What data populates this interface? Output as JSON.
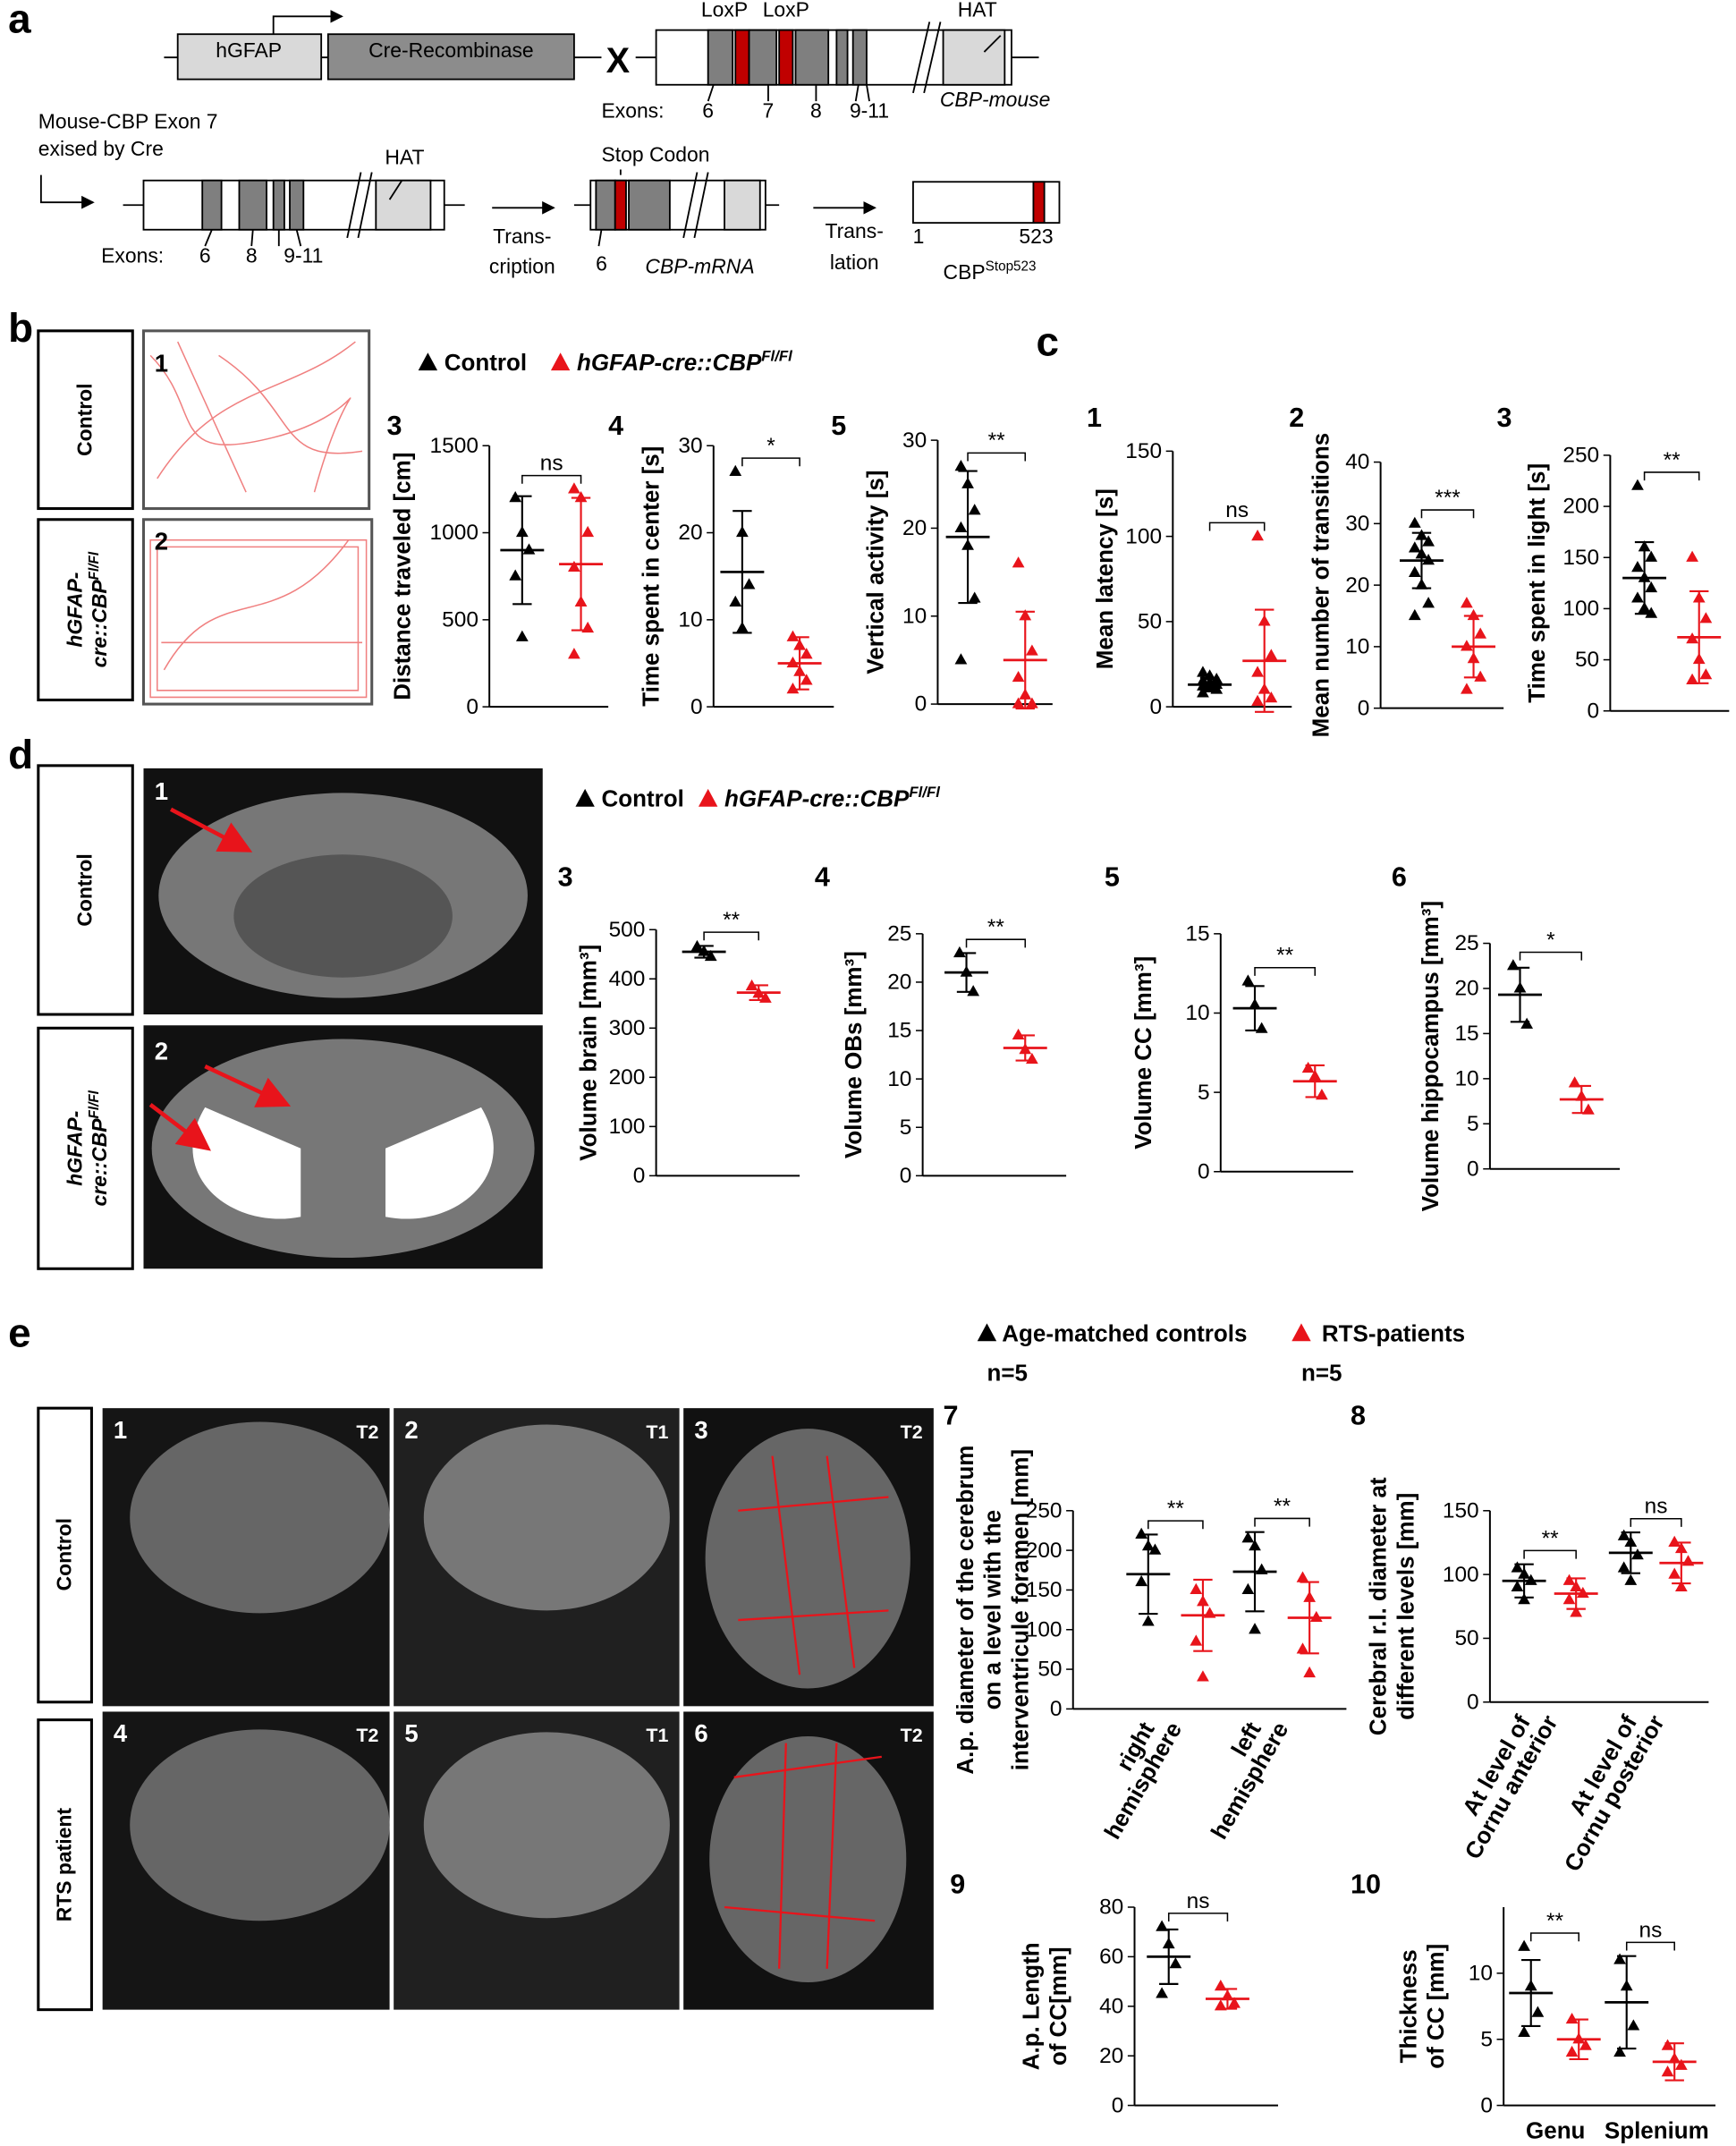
{
  "panel_labels": [
    "a",
    "b",
    "c",
    "d",
    "e"
  ],
  "diagram": {
    "construct1": [
      "hGFAP",
      "Cre-Recombinase"
    ],
    "cross": "X",
    "loxp": [
      "LoxP",
      "LoxP"
    ],
    "hat": "HAT",
    "exons_label": "Exons:",
    "exons1": [
      "6",
      "7",
      "8",
      "9-11"
    ],
    "gene": "CBP-mouse",
    "excised": [
      "Mouse-CBP Exon 7",
      "exised by Cre"
    ],
    "hat2": "HAT",
    "exons_label2": "Exons:",
    "exons2": [
      "6",
      "8",
      "9-11"
    ],
    "transcription": [
      "Trans-",
      "cription"
    ],
    "stop": "Stop Codon",
    "exon_mrna": "6",
    "mrna": "CBP-mRNA",
    "translation": [
      "Trans-",
      "lation"
    ],
    "protein_start": "1",
    "protein_end": "523",
    "protein": "CBP",
    "protein_sup": "Stop523"
  },
  "b": {
    "rows": {
      "control": "Control",
      "mutant": [
        "hGFAP-",
        "cre::CBP"
      ],
      "mutant_sup": "Fl/Fl"
    },
    "images": [
      "1",
      "2"
    ],
    "legend": [
      {
        "name": "Control",
        "color": "#000000"
      },
      {
        "name": "hGFAP-cre::CBP",
        "sup": "Fl/Fl",
        "color": "#e8141b"
      }
    ]
  },
  "d": {
    "rows": {
      "control": "Control",
      "mutant": [
        "hGFAP-",
        "cre::CBP"
      ],
      "mutant_sup": "Fl/Fl"
    },
    "images": [
      "1",
      "2"
    ],
    "legend": [
      {
        "name": "Control",
        "color": "#000000"
      },
      {
        "name": "hGFAP-cre::CBP",
        "sup": "Fl/Fl",
        "color": "#e8141b"
      }
    ]
  },
  "e": {
    "rows": [
      "Control",
      "RTS patient"
    ],
    "images": [
      {
        "n": "1",
        "seq": "T2"
      },
      {
        "n": "2",
        "seq": "T1"
      },
      {
        "n": "3",
        "seq": "T2"
      },
      {
        "n": "4",
        "seq": "T2"
      },
      {
        "n": "5",
        "seq": "T1"
      },
      {
        "n": "6",
        "seq": "T2"
      }
    ],
    "legend": [
      {
        "name": "Age-matched controls",
        "n": "n=5",
        "color": "#000000"
      },
      {
        "name": "RTS-patients",
        "n": "n=5",
        "color": "#e8141b"
      }
    ]
  },
  "chart_data": [
    {
      "type": "dotplot",
      "label": "3",
      "ylabel": [
        "Distance traveled [cm]"
      ],
      "ylim": [
        0,
        1500
      ],
      "yticks": [
        0,
        500,
        1000,
        1500
      ],
      "groups": [
        {
          "color": "#000000",
          "points": [
            1200,
            1000,
            900,
            750,
            400
          ],
          "mean": 900,
          "sd": 310
        },
        {
          "color": "#e8141b",
          "points": [
            1250,
            1200,
            1000,
            800,
            600,
            450,
            300
          ],
          "mean": 820,
          "sd": 380
        }
      ],
      "sig": [
        {
          "text": "ns",
          "groups": [
            0,
            1
          ]
        }
      ]
    },
    {
      "type": "dotplot",
      "label": "4",
      "ylabel": [
        "Time spent in center [s]"
      ],
      "ylim": [
        0,
        30
      ],
      "yticks": [
        0,
        10,
        20,
        30
      ],
      "groups": [
        {
          "color": "#000000",
          "points": [
            27,
            20,
            14,
            12,
            9
          ],
          "mean": 15.5,
          "sd": 7
        },
        {
          "color": "#e8141b",
          "points": [
            8,
            7,
            6,
            5,
            4,
            3,
            2
          ],
          "mean": 5,
          "sd": 3
        }
      ],
      "sig": [
        {
          "text": "*",
          "groups": [
            0,
            1
          ]
        }
      ]
    },
    {
      "type": "dotplot",
      "label": "5",
      "ylabel": [
        "Vertical activity [s]"
      ],
      "ylim": [
        0,
        30
      ],
      "yticks": [
        0,
        10,
        20,
        30
      ],
      "groups": [
        {
          "color": "#000000",
          "points": [
            27,
            25,
            22,
            20,
            18,
            12,
            5
          ],
          "mean": 19,
          "sd": 7.5
        },
        {
          "color": "#e8141b",
          "points": [
            16,
            10,
            6,
            3,
            1,
            0,
            0
          ],
          "mean": 5,
          "sd": 5.5
        }
      ],
      "sig": [
        {
          "text": "**",
          "groups": [
            0,
            1
          ]
        }
      ]
    },
    {
      "type": "dotplot",
      "label": "1",
      "ylabel": [
        "Mean latency [s]"
      ],
      "ylim": [
        0,
        150
      ],
      "yticks": [
        0,
        50,
        100,
        150
      ],
      "groups": [
        {
          "color": "#000000",
          "points": [
            20,
            18,
            16,
            15,
            14,
            13,
            12,
            11,
            10,
            8
          ],
          "mean": 13,
          "sd": 4
        },
        {
          "color": "#e8141b",
          "points": [
            100,
            50,
            30,
            20,
            10,
            5,
            3
          ],
          "mean": 27,
          "sd": 30
        }
      ],
      "sig": [
        {
          "text": "ns",
          "groups": [
            0,
            1
          ]
        }
      ]
    },
    {
      "type": "dotplot",
      "label": "2",
      "ylabel": [
        "Mean number of transitions"
      ],
      "ylim": [
        0,
        40
      ],
      "yticks": [
        0,
        10,
        20,
        30,
        40
      ],
      "groups": [
        {
          "color": "#000000",
          "points": [
            30,
            28,
            27,
            26,
            25,
            24,
            22,
            20,
            17,
            15
          ],
          "mean": 24,
          "sd": 4.5
        },
        {
          "color": "#e8141b",
          "points": [
            17,
            15,
            12,
            10,
            8,
            5,
            3
          ],
          "mean": 10,
          "sd": 5
        }
      ],
      "sig": [
        {
          "text": "***",
          "groups": [
            0,
            1
          ]
        }
      ]
    },
    {
      "type": "dotplot",
      "label": "3",
      "ylabel": [
        "Time spent in light [s]"
      ],
      "ylim": [
        0,
        250
      ],
      "yticks": [
        0,
        50,
        100,
        150,
        200,
        250
      ],
      "groups": [
        {
          "color": "#000000",
          "points": [
            220,
            160,
            150,
            140,
            130,
            120,
            110,
            100,
            95
          ],
          "mean": 130,
          "sd": 35
        },
        {
          "color": "#e8141b",
          "points": [
            150,
            110,
            90,
            70,
            50,
            35,
            30
          ],
          "mean": 72,
          "sd": 45
        }
      ],
      "sig": [
        {
          "text": "**",
          "groups": [
            0,
            1
          ]
        }
      ]
    },
    {
      "type": "dotplot",
      "label": "3",
      "ylabel": [
        "Volume brain [mm³]"
      ],
      "ylim": [
        0,
        500
      ],
      "yticks": [
        0,
        100,
        200,
        300,
        400,
        500
      ],
      "groups": [
        {
          "color": "#000000",
          "points": [
            465,
            455,
            445
          ],
          "mean": 455,
          "sd": 12
        },
        {
          "color": "#e8141b",
          "points": [
            385,
            370,
            360
          ],
          "mean": 372,
          "sd": 15
        }
      ],
      "sig": [
        {
          "text": "**",
          "groups": [
            0,
            1
          ]
        }
      ]
    },
    {
      "type": "dotplot",
      "label": "4",
      "ylabel": [
        "Volume OBs [mm³]"
      ],
      "ylim": [
        0,
        25
      ],
      "yticks": [
        0,
        5,
        10,
        15,
        20,
        25
      ],
      "groups": [
        {
          "color": "#000000",
          "points": [
            23,
            21,
            19
          ],
          "mean": 21,
          "sd": 2
        },
        {
          "color": "#e8141b",
          "points": [
            14.5,
            13,
            12
          ],
          "mean": 13.2,
          "sd": 1.3
        }
      ],
      "sig": [
        {
          "text": "**",
          "groups": [
            0,
            1
          ]
        }
      ]
    },
    {
      "type": "dotplot",
      "label": "5",
      "ylabel": [
        "Volume CC [mm³]"
      ],
      "ylim": [
        0,
        15
      ],
      "yticks": [
        0,
        5,
        10,
        15
      ],
      "groups": [
        {
          "color": "#000000",
          "points": [
            12,
            10.5,
            9
          ],
          "mean": 10.3,
          "sd": 1.4
        },
        {
          "color": "#e8141b",
          "points": [
            6.5,
            6,
            4.8
          ],
          "mean": 5.7,
          "sd": 1
        }
      ],
      "sig": [
        {
          "text": "**",
          "groups": [
            0,
            1
          ]
        }
      ]
    },
    {
      "type": "dotplot",
      "label": "6",
      "ylabel": [
        "Volume hippocampus [mm³]"
      ],
      "ylim": [
        0,
        25
      ],
      "yticks": [
        0,
        5,
        10,
        15,
        20,
        25
      ],
      "groups": [
        {
          "color": "#000000",
          "points": [
            22.5,
            20,
            16
          ],
          "mean": 19.3,
          "sd": 3
        },
        {
          "color": "#e8141b",
          "points": [
            9.5,
            8,
            6.5
          ],
          "mean": 7.7,
          "sd": 1.5
        }
      ],
      "sig": [
        {
          "text": "*",
          "groups": [
            0,
            1
          ]
        }
      ]
    },
    {
      "type": "dotplot",
      "label": "7",
      "ylabel": [
        "A.p. diameter of the cerebrum",
        "on a level with the",
        "interventricule foramen [mm]"
      ],
      "ylim": [
        0,
        250
      ],
      "yticks": [
        0,
        50,
        100,
        150,
        200,
        250
      ],
      "categories": [
        [
          "right",
          "hemisphere"
        ],
        [
          "left",
          "hemisphere"
        ]
      ],
      "groups": [
        {
          "color": "#000000",
          "points": [
            220,
            205,
            200,
            160,
            110
          ],
          "mean": 170,
          "sd": 50
        },
        {
          "color": "#e8141b",
          "points": [
            150,
            135,
            120,
            85,
            40
          ],
          "mean": 118,
          "sd": 45
        },
        {
          "color": "#000000",
          "points": [
            215,
            205,
            175,
            150,
            100
          ],
          "mean": 173,
          "sd": 50
        },
        {
          "color": "#e8141b",
          "points": [
            165,
            140,
            115,
            75,
            45
          ],
          "mean": 115,
          "sd": 45
        }
      ],
      "sig": [
        {
          "text": "**",
          "groups": [
            0,
            1
          ]
        },
        {
          "text": "**",
          "groups": [
            2,
            3
          ]
        }
      ]
    },
    {
      "type": "dotplot",
      "label": "8",
      "ylabel": [
        "Cerebral r.l. diameter at",
        "different levels [mm]"
      ],
      "ylim": [
        0,
        150
      ],
      "yticks": [
        0,
        50,
        100,
        150
      ],
      "categories": [
        [
          "At level of",
          "Cornu anterior"
        ],
        [
          "At level of",
          "Cornu posterior"
        ]
      ],
      "groups": [
        {
          "color": "#000000",
          "points": [
            105,
            100,
            95,
            90,
            80
          ],
          "mean": 95,
          "sd": 13
        },
        {
          "color": "#e8141b",
          "points": [
            95,
            90,
            85,
            80,
            70
          ],
          "mean": 85,
          "sd": 12
        },
        {
          "color": "#000000",
          "points": [
            130,
            125,
            115,
            105,
            95
          ],
          "mean": 117,
          "sd": 16
        },
        {
          "color": "#e8141b",
          "points": [
            125,
            120,
            110,
            100,
            90
          ],
          "mean": 109,
          "sd": 16
        }
      ],
      "sig": [
        {
          "text": "**",
          "groups": [
            0,
            1
          ]
        },
        {
          "text": "ns",
          "groups": [
            2,
            3
          ]
        }
      ]
    },
    {
      "type": "dotplot",
      "label": "9",
      "ylabel": [
        "A.p. Length",
        "of CC[mm]"
      ],
      "ylim": [
        0,
        80
      ],
      "yticks": [
        0,
        20,
        40,
        60,
        80
      ],
      "groups": [
        {
          "color": "#000000",
          "points": [
            72,
            65,
            57,
            45
          ],
          "mean": 60,
          "sd": 11
        },
        {
          "color": "#e8141b",
          "points": [
            48,
            44,
            41,
            40
          ],
          "mean": 43,
          "sd": 4
        }
      ],
      "sig": [
        {
          "text": "ns",
          "groups": [
            0,
            1
          ]
        }
      ]
    },
    {
      "type": "dotplot",
      "label": "10",
      "ylabel": [
        "Thickness",
        "of CC [mm]"
      ],
      "ylim": [
        0,
        15
      ],
      "yticks": [
        0,
        5,
        10
      ],
      "categories": [
        [
          "Genu"
        ],
        [
          "Splenium"
        ]
      ],
      "groups": [
        {
          "color": "#000000",
          "points": [
            12,
            9,
            7,
            5.5
          ],
          "mean": 8.5,
          "sd": 2.5
        },
        {
          "color": "#e8141b",
          "points": [
            6.5,
            5,
            4.5,
            4
          ],
          "mean": 5,
          "sd": 1.5
        },
        {
          "color": "#000000",
          "points": [
            11,
            9,
            6,
            4
          ],
          "mean": 7.8,
          "sd": 3.5
        },
        {
          "color": "#e8141b",
          "points": [
            4.5,
            3.5,
            3,
            2.5
          ],
          "mean": 3.3,
          "sd": 1.4
        }
      ],
      "sig": [
        {
          "text": "**",
          "groups": [
            0,
            1
          ]
        },
        {
          "text": "ns",
          "groups": [
            2,
            3
          ]
        }
      ]
    }
  ]
}
